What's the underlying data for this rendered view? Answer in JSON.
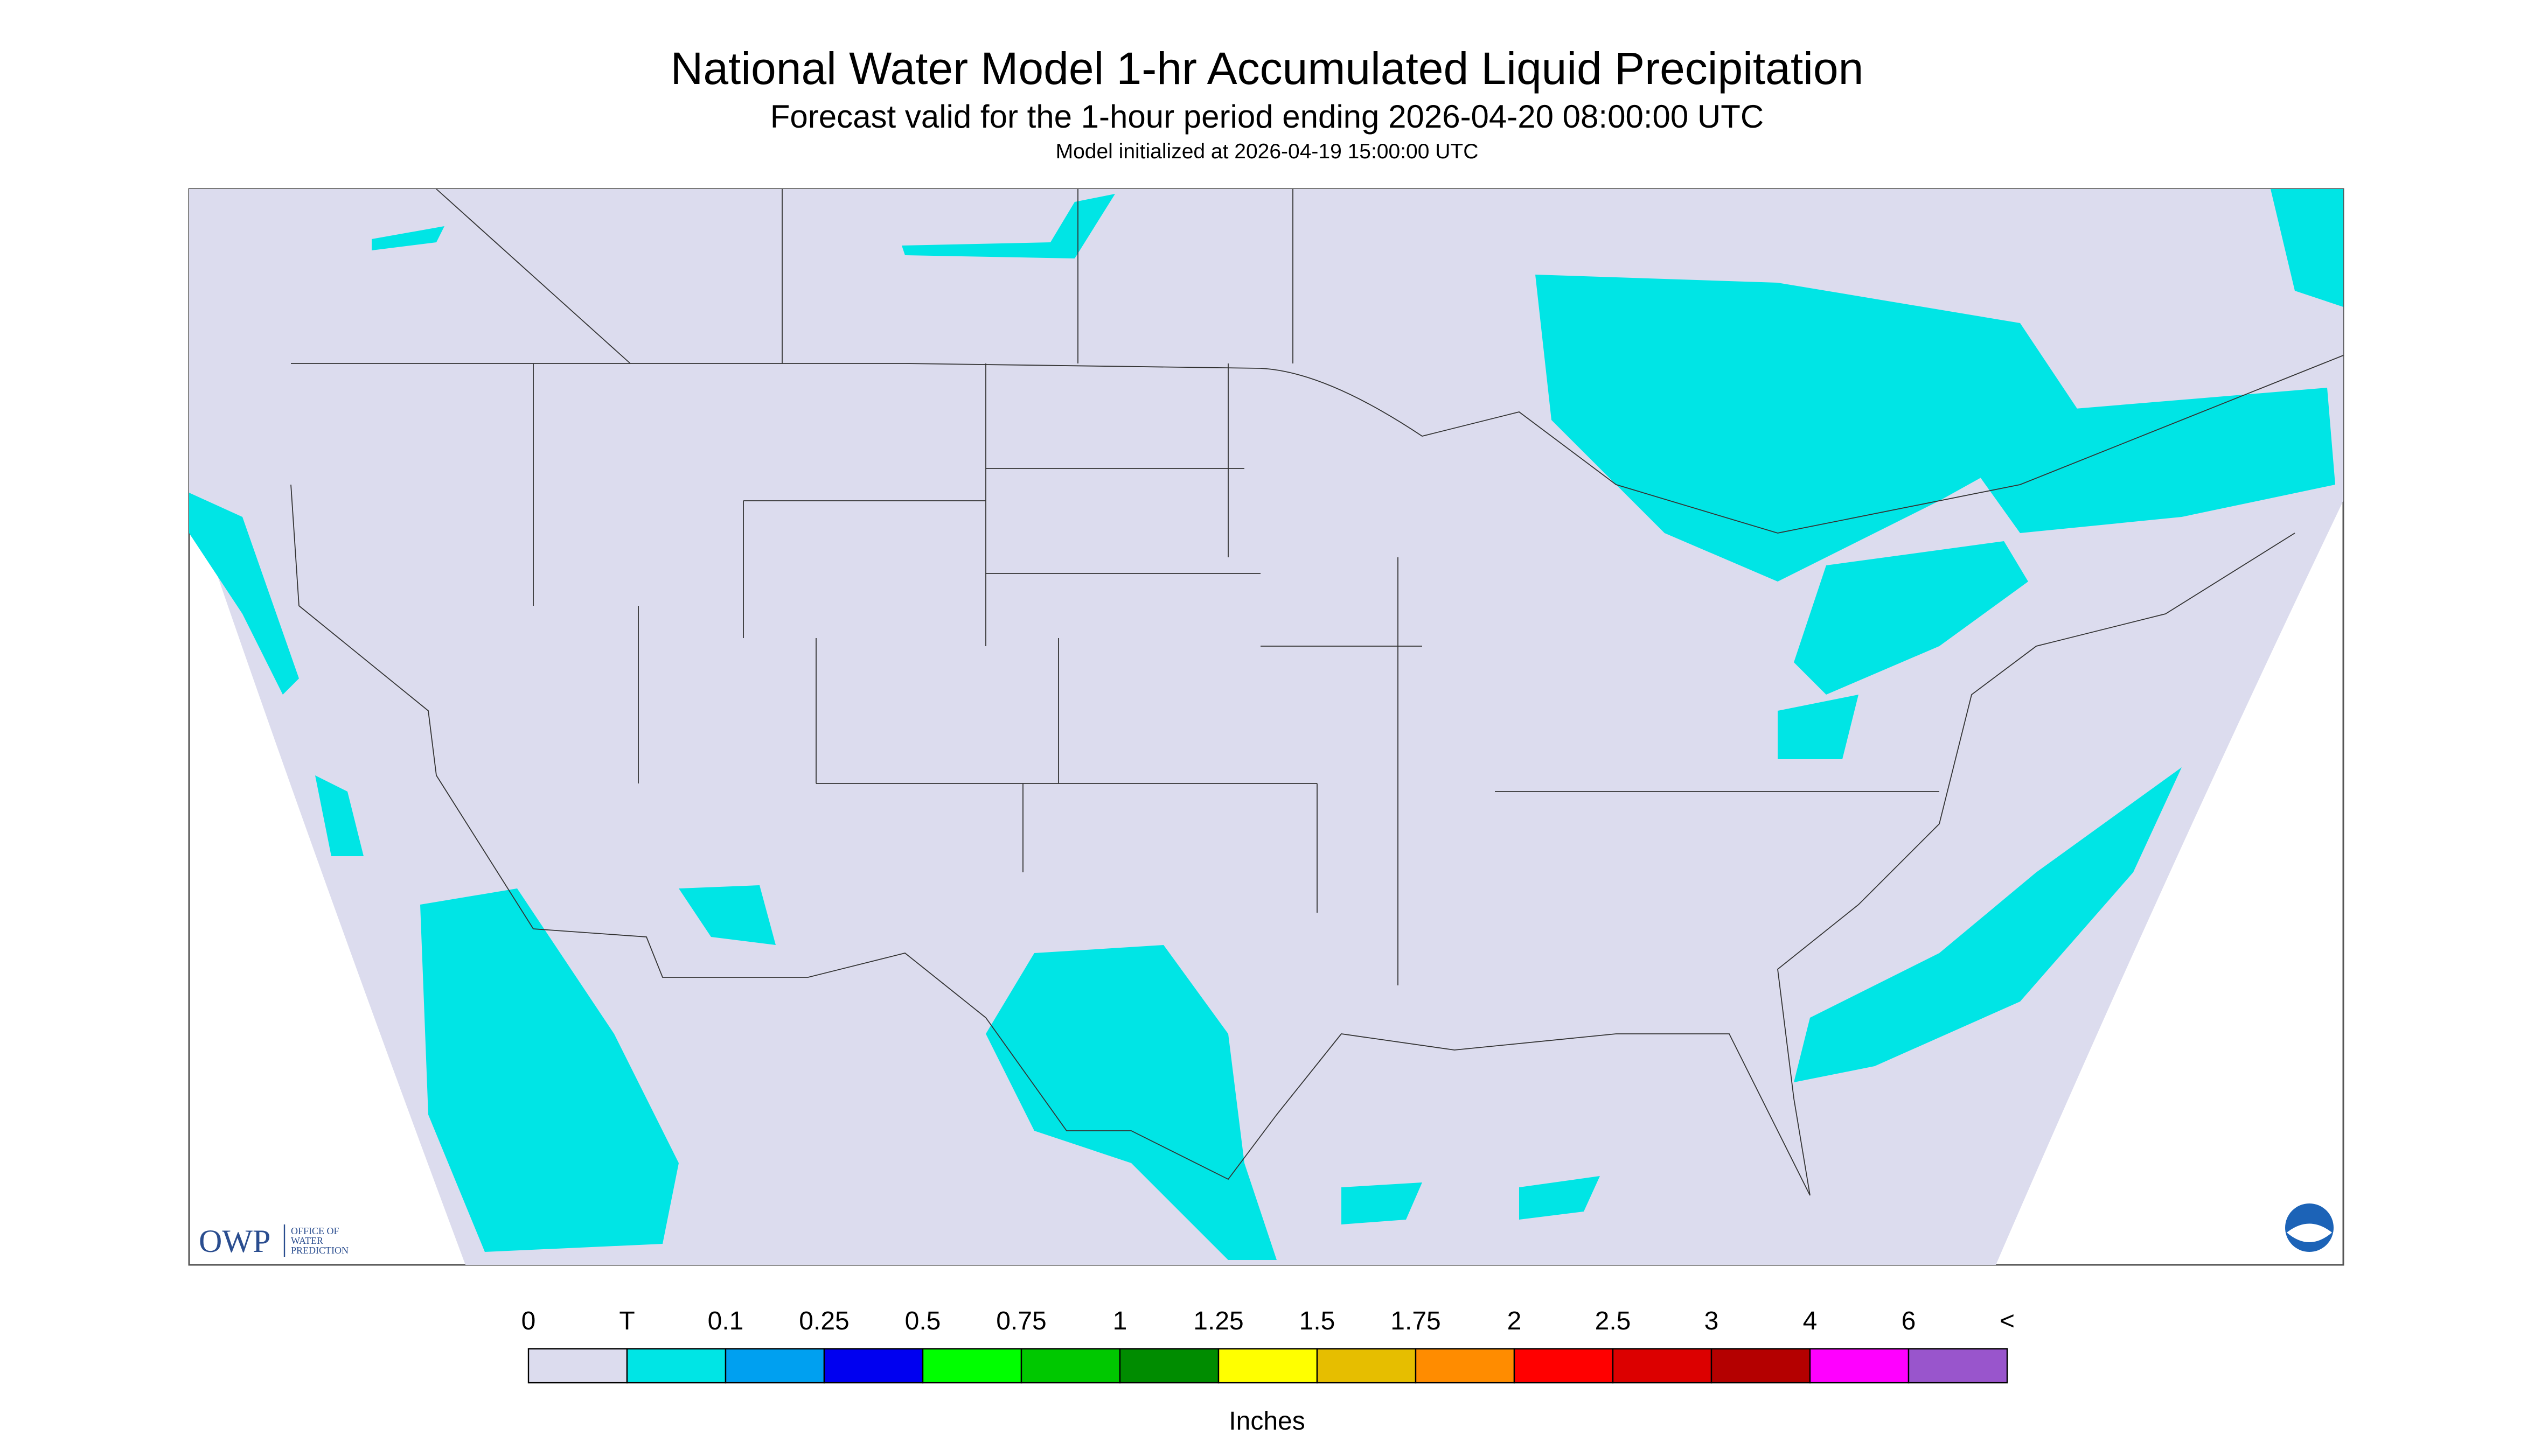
{
  "header": {
    "title": "National Water Model 1-hr Accumulated Liquid Precipitation",
    "subtitle": "Forecast valid for the 1-hour period ending 2026-04-20 08:00:00 UTC",
    "initialized": "Model initialized at 2026-04-19 15:00:00 UTC"
  },
  "legend": {
    "labels": [
      "0",
      "T",
      "0.1",
      "0.25",
      "0.5",
      "0.75",
      "1",
      "1.25",
      "1.5",
      "1.75",
      "2",
      "2.5",
      "3",
      "4",
      "6",
      "<"
    ],
    "colors": [
      "#dcdcee",
      "#00e5e5",
      "#00a0f0",
      "#0000f0",
      "#00ff00",
      "#00c800",
      "#008c00",
      "#ffff00",
      "#e6be00",
      "#ff8c00",
      "#ff0000",
      "#dc0000",
      "#b40000",
      "#ff00ff",
      "#9955cc"
    ],
    "unit": "Inches"
  },
  "logo": {
    "abbr": "OWP",
    "name": [
      "OFFICE OF",
      "WATER",
      "PREDICTION"
    ]
  }
}
